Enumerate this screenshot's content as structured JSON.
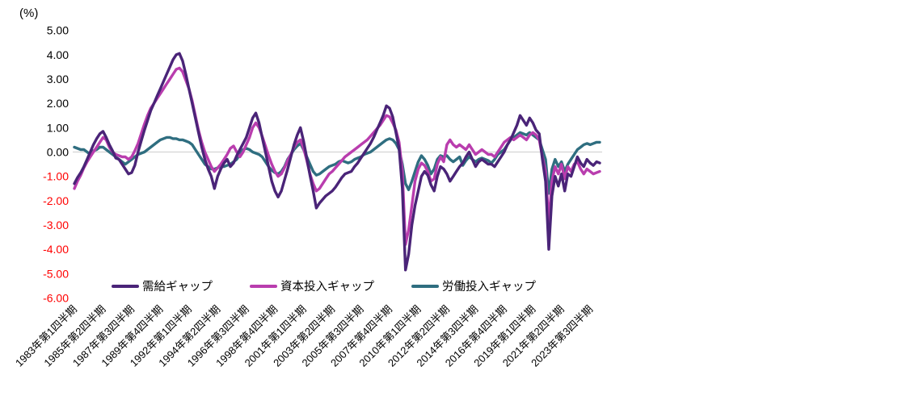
{
  "unit_label": "(%)",
  "colors": {
    "demand_gap": "#4A2478",
    "capital_gap": "#B93DAE",
    "labor_gap": "#2F6E80",
    "zero_line": "#D9D9D9",
    "positive_tick": "#000000",
    "negative_tick": "#FF0000",
    "x_tick": "#000000"
  },
  "chart_data": {
    "type": "line",
    "frequency": "quarterly",
    "x_start": "1983Q1",
    "x_end": "2024Q2",
    "ylim": [
      -6,
      5
    ],
    "y_ticks": [
      5,
      4,
      3,
      2,
      1,
      0,
      -1,
      -2,
      -3,
      -4,
      -5,
      -6
    ],
    "y_tick_format": "0.00",
    "grid": "zero-line-only",
    "legend_position": "bottom",
    "x_tick_every_n_points": 9,
    "x_tick_labels": [
      "1983年第1四半期",
      "1985年第2四半期",
      "1987年第3四半期",
      "1989年第4四半期",
      "1992年第1四半期",
      "1994年第2四半期",
      "1996年第3四半期",
      "1998年第4四半期",
      "2001年第1四半期",
      "2003年第2四半期",
      "2005年第3四半期",
      "2007年第4四半期",
      "2010年第1四半期",
      "2012年第2四半期",
      "2014年第3四半期",
      "2016年第4四半期",
      "2019年第1四半期",
      "2021年第2四半期",
      "2023年第3四半期"
    ],
    "series": [
      {
        "name": "需給ギャップ",
        "color_key": "demand_gap",
        "values": [
          -1.3,
          -1.05,
          -0.85,
          -0.6,
          -0.3,
          0.0,
          0.3,
          0.55,
          0.75,
          0.85,
          0.6,
          0.3,
          0.05,
          -0.25,
          -0.3,
          -0.5,
          -0.7,
          -0.9,
          -0.85,
          -0.55,
          0.0,
          0.45,
          0.9,
          1.3,
          1.7,
          2.0,
          2.3,
          2.6,
          2.9,
          3.2,
          3.5,
          3.8,
          4.0,
          4.05,
          3.75,
          3.2,
          2.6,
          2.0,
          1.4,
          0.8,
          0.2,
          -0.3,
          -0.7,
          -1.0,
          -1.5,
          -1.0,
          -0.7,
          -0.45,
          -0.3,
          -0.6,
          -0.45,
          -0.15,
          0.1,
          0.35,
          0.6,
          1.0,
          1.4,
          1.6,
          1.2,
          0.6,
          0.0,
          -0.6,
          -1.2,
          -1.6,
          -1.85,
          -1.6,
          -1.15,
          -0.7,
          -0.2,
          0.3,
          0.7,
          1.0,
          0.45,
          -0.25,
          -0.95,
          -1.6,
          -2.3,
          -2.1,
          -1.95,
          -1.8,
          -1.7,
          -1.6,
          -1.45,
          -1.25,
          -1.05,
          -0.9,
          -0.85,
          -0.8,
          -0.6,
          -0.45,
          -0.25,
          -0.05,
          0.15,
          0.35,
          0.6,
          0.9,
          1.2,
          1.5,
          1.9,
          1.8,
          1.45,
          0.8,
          0.15,
          -1.5,
          -4.85,
          -4.2,
          -3.0,
          -2.2,
          -1.6,
          -1.0,
          -0.8,
          -0.95,
          -1.35,
          -1.6,
          -1.0,
          -0.6,
          -0.7,
          -0.9,
          -1.2,
          -1.0,
          -0.8,
          -0.6,
          -0.45,
          -0.2,
          0.0,
          -0.3,
          -0.6,
          -0.4,
          -0.3,
          -0.4,
          -0.5,
          -0.5,
          -0.6,
          -0.4,
          -0.2,
          0.0,
          0.3,
          0.5,
          0.8,
          1.1,
          1.5,
          1.3,
          1.1,
          1.4,
          1.2,
          0.9,
          0.75,
          -0.3,
          -1.2,
          -4.0,
          -1.8,
          -1.0,
          -1.4,
          -0.9,
          -1.6,
          -0.9,
          -1.0,
          -0.6,
          -0.2,
          -0.45,
          -0.6,
          -0.3,
          -0.45,
          -0.55,
          -0.4,
          -0.45
        ]
      },
      {
        "name": "資本投入ギャップ",
        "color_key": "capital_gap",
        "values": [
          -1.5,
          -1.2,
          -0.95,
          -0.65,
          -0.4,
          -0.2,
          0.0,
          0.2,
          0.4,
          0.6,
          0.5,
          0.2,
          0.0,
          -0.1,
          -0.15,
          -0.2,
          -0.2,
          -0.3,
          -0.2,
          0.05,
          0.35,
          0.75,
          1.15,
          1.5,
          1.8,
          2.0,
          2.2,
          2.4,
          2.6,
          2.8,
          3.0,
          3.2,
          3.4,
          3.45,
          3.3,
          2.95,
          2.6,
          2.1,
          1.5,
          0.9,
          0.4,
          0.0,
          -0.3,
          -0.6,
          -0.8,
          -0.65,
          -0.5,
          -0.3,
          -0.1,
          0.15,
          0.25,
          0.0,
          -0.2,
          0.0,
          0.3,
          0.6,
          1.0,
          1.2,
          1.0,
          0.65,
          0.25,
          -0.15,
          -0.5,
          -0.8,
          -1.0,
          -0.9,
          -0.65,
          -0.35,
          -0.1,
          0.2,
          0.4,
          0.5,
          0.15,
          -0.35,
          -0.9,
          -1.3,
          -1.6,
          -1.5,
          -1.3,
          -1.1,
          -0.9,
          -0.8,
          -0.65,
          -0.5,
          -0.35,
          -0.2,
          -0.1,
          0.0,
          0.1,
          0.2,
          0.3,
          0.4,
          0.5,
          0.65,
          0.8,
          0.95,
          1.1,
          1.3,
          1.5,
          1.45,
          1.2,
          0.9,
          0.4,
          -0.8,
          -3.8,
          -3.2,
          -2.2,
          -1.2,
          -0.7,
          -0.45,
          -0.55,
          -0.8,
          -1.2,
          -1.1,
          -0.5,
          -0.2,
          -0.4,
          0.3,
          0.5,
          0.3,
          0.2,
          0.3,
          0.2,
          0.1,
          0.3,
          0.1,
          -0.1,
          0.0,
          0.1,
          0.0,
          -0.1,
          -0.1,
          -0.2,
          0.0,
          0.2,
          0.4,
          0.5,
          0.6,
          0.5,
          0.6,
          0.7,
          0.6,
          0.5,
          0.7,
          0.8,
          0.7,
          0.5,
          -0.2,
          -0.8,
          -2.9,
          -1.2,
          -0.6,
          -0.9,
          -0.5,
          -1.1,
          -0.6,
          -0.8,
          -0.5,
          -0.4,
          -0.7,
          -0.9,
          -0.7,
          -0.8,
          -0.9,
          -0.85,
          -0.8
        ]
      },
      {
        "name": "労働投入ギャップ",
        "color_key": "labor_gap",
        "values": [
          0.2,
          0.15,
          0.1,
          0.1,
          0.0,
          -0.1,
          0.05,
          0.1,
          0.2,
          0.2,
          0.1,
          0.0,
          -0.1,
          -0.2,
          -0.3,
          -0.4,
          -0.5,
          -0.4,
          -0.3,
          -0.2,
          -0.1,
          -0.05,
          0.0,
          0.1,
          0.2,
          0.3,
          0.4,
          0.5,
          0.55,
          0.6,
          0.6,
          0.55,
          0.55,
          0.5,
          0.5,
          0.45,
          0.4,
          0.3,
          0.1,
          -0.1,
          -0.3,
          -0.5,
          -0.6,
          -0.7,
          -0.7,
          -0.65,
          -0.6,
          -0.6,
          -0.55,
          -0.5,
          -0.4,
          -0.3,
          -0.1,
          0.1,
          0.15,
          0.1,
          0.0,
          -0.05,
          -0.1,
          -0.2,
          -0.4,
          -0.6,
          -0.75,
          -0.85,
          -0.9,
          -0.8,
          -0.6,
          -0.3,
          -0.1,
          0.1,
          0.25,
          0.35,
          0.1,
          -0.2,
          -0.5,
          -0.8,
          -0.95,
          -0.9,
          -0.8,
          -0.7,
          -0.6,
          -0.55,
          -0.5,
          -0.4,
          -0.35,
          -0.4,
          -0.45,
          -0.4,
          -0.3,
          -0.25,
          -0.2,
          -0.1,
          -0.05,
          0.0,
          0.1,
          0.2,
          0.3,
          0.4,
          0.5,
          0.55,
          0.5,
          0.35,
          0.1,
          -0.5,
          -1.3,
          -1.55,
          -1.2,
          -0.8,
          -0.4,
          -0.15,
          -0.3,
          -0.55,
          -0.9,
          -0.7,
          -0.3,
          -0.15,
          -0.2,
          -0.15,
          -0.3,
          -0.4,
          -0.3,
          -0.2,
          -0.55,
          -0.35,
          -0.2,
          -0.3,
          -0.4,
          -0.3,
          -0.25,
          -0.3,
          -0.35,
          -0.45,
          -0.3,
          -0.1,
          0.0,
          0.1,
          0.3,
          0.5,
          0.6,
          0.7,
          0.8,
          0.75,
          0.7,
          0.8,
          0.7,
          0.6,
          0.5,
          0.1,
          -0.3,
          -1.7,
          -0.7,
          -0.3,
          -0.6,
          -0.4,
          -0.8,
          -0.5,
          -0.3,
          -0.1,
          0.1,
          0.2,
          0.3,
          0.35,
          0.3,
          0.35,
          0.4,
          0.4
        ]
      }
    ]
  }
}
